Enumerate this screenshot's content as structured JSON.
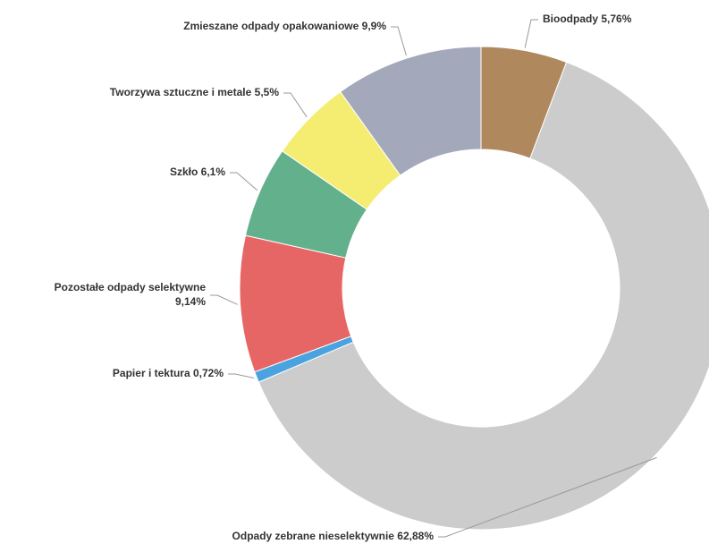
{
  "chart_data": {
    "type": "donut",
    "categories": [
      "Bioodpady",
      "Odpady zebrane nieselektywnie",
      "Papier i tektura",
      "Pozostałe odpady selektywne",
      "Szkło",
      "Tworzywa sztuczne i metale",
      "Zmieszane odpady opakowaniowe"
    ],
    "values": [
      5.76,
      62.88,
      0.72,
      9.14,
      6.1,
      5.5,
      9.9
    ],
    "value_labels": [
      "5,76%",
      "62,88%",
      "0,72%",
      "9,14%",
      "6,1%",
      "5,5%",
      "9,9%"
    ],
    "colors": [
      "#b0885e",
      "#cccccc",
      "#4aa3df",
      "#e66665",
      "#63b08c",
      "#f5ed72",
      "#a3a8bb"
    ]
  }
}
